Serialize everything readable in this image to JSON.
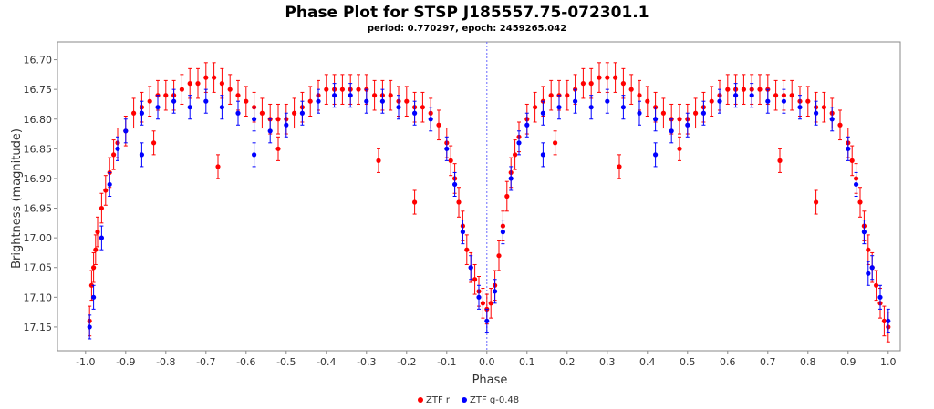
{
  "chart_data": {
    "type": "scatter",
    "title": "Phase Plot for STSP J185557.75-072301.1",
    "subtitle": "period: 0.770297, epoch: 2459265.042",
    "xlabel": "Phase",
    "ylabel": "Brightness (magnitude)",
    "xlim": [
      -1.07,
      1.03
    ],
    "ylim": [
      16.67,
      17.19
    ],
    "y_inverted": true,
    "xticks": [
      -1.0,
      -0.9,
      -0.8,
      -0.7,
      -0.6,
      -0.5,
      -0.4,
      -0.3,
      -0.2,
      -0.1,
      0.0,
      0.1,
      0.2,
      0.3,
      0.4,
      0.5,
      0.6,
      0.7,
      0.8,
      0.9,
      1.0
    ],
    "xtick_labels": [
      "-1.0",
      "-0.9",
      "-0.8",
      "-0.7",
      "-0.6",
      "-0.5",
      "-0.4",
      "-0.3",
      "-0.2",
      "-0.1",
      "0.0",
      "0.1",
      "0.2",
      "0.3",
      "0.4",
      "0.5",
      "0.6",
      "0.7",
      "0.8",
      "0.9",
      "1.0"
    ],
    "yticks": [
      16.7,
      16.75,
      16.8,
      16.85,
      16.9,
      16.95,
      17.0,
      17.05,
      17.1,
      17.15
    ],
    "ytick_labels": [
      "16.70",
      "16.75",
      "16.80",
      "16.85",
      "16.90",
      "16.95",
      "17.00",
      "17.05",
      "17.10",
      "17.15"
    ],
    "grid": false,
    "vline_x": 0.0,
    "legend_position": "bottom-center",
    "series": [
      {
        "name": "ZTF r",
        "color": "#ff0000",
        "points": [
          [
            -0.99,
            17.14,
            0.025
          ],
          [
            -0.985,
            17.08,
            0.025
          ],
          [
            -0.98,
            17.05,
            0.025
          ],
          [
            -0.975,
            17.02,
            0.025
          ],
          [
            -0.97,
            16.99,
            0.025
          ],
          [
            -0.96,
            16.95,
            0.025
          ],
          [
            -0.95,
            16.92,
            0.025
          ],
          [
            -0.94,
            16.89,
            0.025
          ],
          [
            -0.93,
            16.86,
            0.025
          ],
          [
            -0.92,
            16.84,
            0.025
          ],
          [
            -0.9,
            16.82,
            0.025
          ],
          [
            -0.88,
            16.79,
            0.025
          ],
          [
            -0.86,
            16.78,
            0.025
          ],
          [
            -0.84,
            16.77,
            0.025
          ],
          [
            -0.82,
            16.76,
            0.025
          ],
          [
            -0.8,
            16.76,
            0.025
          ],
          [
            -0.78,
            16.76,
            0.025
          ],
          [
            -0.76,
            16.75,
            0.025
          ],
          [
            -0.74,
            16.74,
            0.025
          ],
          [
            -0.72,
            16.74,
            0.025
          ],
          [
            -0.7,
            16.73,
            0.025
          ],
          [
            -0.68,
            16.73,
            0.025
          ],
          [
            -0.66,
            16.74,
            0.025
          ],
          [
            -0.64,
            16.75,
            0.025
          ],
          [
            -0.62,
            16.76,
            0.025
          ],
          [
            -0.6,
            16.77,
            0.025
          ],
          [
            -0.58,
            16.78,
            0.025
          ],
          [
            -0.56,
            16.79,
            0.025
          ],
          [
            -0.54,
            16.8,
            0.025
          ],
          [
            -0.52,
            16.8,
            0.025
          ],
          [
            -0.5,
            16.8,
            0.025
          ],
          [
            -0.48,
            16.79,
            0.025
          ],
          [
            -0.46,
            16.78,
            0.025
          ],
          [
            -0.44,
            16.77,
            0.025
          ],
          [
            -0.42,
            16.76,
            0.025
          ],
          [
            -0.4,
            16.75,
            0.025
          ],
          [
            -0.38,
            16.75,
            0.025
          ],
          [
            -0.36,
            16.75,
            0.025
          ],
          [
            -0.34,
            16.75,
            0.025
          ],
          [
            -0.32,
            16.75,
            0.025
          ],
          [
            -0.3,
            16.75,
            0.025
          ],
          [
            -0.28,
            16.76,
            0.025
          ],
          [
            -0.26,
            16.76,
            0.025
          ],
          [
            -0.24,
            16.76,
            0.025
          ],
          [
            -0.22,
            16.77,
            0.025
          ],
          [
            -0.2,
            16.77,
            0.025
          ],
          [
            -0.18,
            16.78,
            0.025
          ],
          [
            -0.16,
            16.78,
            0.025
          ],
          [
            -0.14,
            16.79,
            0.025
          ],
          [
            -0.12,
            16.81,
            0.025
          ],
          [
            -0.1,
            16.84,
            0.025
          ],
          [
            -0.09,
            16.87,
            0.025
          ],
          [
            -0.08,
            16.9,
            0.025
          ],
          [
            -0.07,
            16.94,
            0.025
          ],
          [
            -0.06,
            16.98,
            0.025
          ],
          [
            -0.05,
            17.02,
            0.025
          ],
          [
            -0.04,
            17.05,
            0.025
          ],
          [
            -0.03,
            17.07,
            0.025
          ],
          [
            -0.02,
            17.09,
            0.025
          ],
          [
            -0.01,
            17.11,
            0.025
          ],
          [
            0.0,
            17.12,
            0.025
          ],
          [
            0.01,
            17.11,
            0.025
          ],
          [
            0.02,
            17.08,
            0.025
          ],
          [
            0.03,
            17.03,
            0.025
          ],
          [
            0.04,
            16.98,
            0.025
          ],
          [
            0.05,
            16.93,
            0.025
          ],
          [
            0.06,
            16.89,
            0.025
          ],
          [
            0.07,
            16.86,
            0.025
          ],
          [
            0.08,
            16.83,
            0.025
          ],
          [
            0.1,
            16.8,
            0.025
          ],
          [
            0.12,
            16.78,
            0.025
          ],
          [
            0.14,
            16.77,
            0.025
          ],
          [
            0.16,
            16.76,
            0.025
          ],
          [
            0.18,
            16.76,
            0.025
          ],
          [
            0.2,
            16.76,
            0.025
          ],
          [
            0.22,
            16.75,
            0.025
          ],
          [
            0.24,
            16.74,
            0.025
          ],
          [
            0.26,
            16.74,
            0.025
          ],
          [
            0.28,
            16.73,
            0.025
          ],
          [
            0.3,
            16.73,
            0.025
          ],
          [
            0.32,
            16.73,
            0.025
          ],
          [
            0.34,
            16.74,
            0.025
          ],
          [
            0.36,
            16.75,
            0.025
          ],
          [
            0.38,
            16.76,
            0.025
          ],
          [
            0.4,
            16.77,
            0.025
          ],
          [
            0.42,
            16.78,
            0.025
          ],
          [
            0.44,
            16.79,
            0.025
          ],
          [
            0.46,
            16.8,
            0.025
          ],
          [
            0.48,
            16.8,
            0.025
          ],
          [
            0.5,
            16.8,
            0.025
          ],
          [
            0.52,
            16.79,
            0.025
          ],
          [
            0.54,
            16.78,
            0.025
          ],
          [
            0.56,
            16.77,
            0.025
          ],
          [
            0.58,
            16.76,
            0.025
          ],
          [
            0.6,
            16.75,
            0.025
          ],
          [
            0.62,
            16.75,
            0.025
          ],
          [
            0.64,
            16.75,
            0.025
          ],
          [
            0.66,
            16.75,
            0.025
          ],
          [
            0.68,
            16.75,
            0.025
          ],
          [
            0.7,
            16.75,
            0.025
          ],
          [
            0.72,
            16.76,
            0.025
          ],
          [
            0.74,
            16.76,
            0.025
          ],
          [
            0.76,
            16.76,
            0.025
          ],
          [
            0.78,
            16.77,
            0.025
          ],
          [
            0.8,
            16.77,
            0.025
          ],
          [
            0.82,
            16.78,
            0.025
          ],
          [
            0.84,
            16.78,
            0.025
          ],
          [
            0.86,
            16.79,
            0.025
          ],
          [
            0.88,
            16.81,
            0.025
          ],
          [
            0.9,
            16.84,
            0.025
          ],
          [
            0.91,
            16.87,
            0.025
          ],
          [
            0.92,
            16.9,
            0.025
          ],
          [
            0.93,
            16.94,
            0.025
          ],
          [
            0.94,
            16.98,
            0.025
          ],
          [
            0.95,
            17.02,
            0.025
          ],
          [
            0.96,
            17.05,
            0.025
          ],
          [
            0.97,
            17.08,
            0.025
          ],
          [
            0.98,
            17.11,
            0.025
          ],
          [
            0.99,
            17.14,
            0.025
          ],
          [
            1.0,
            17.15,
            0.025
          ],
          [
            -0.67,
            16.88,
            0.02
          ],
          [
            -0.27,
            16.87,
            0.02
          ],
          [
            -0.18,
            16.94,
            0.02
          ],
          [
            0.33,
            16.88,
            0.02
          ],
          [
            0.73,
            16.87,
            0.02
          ],
          [
            0.82,
            16.94,
            0.02
          ],
          [
            -0.83,
            16.84,
            0.02
          ],
          [
            -0.52,
            16.85,
            0.02
          ],
          [
            0.17,
            16.84,
            0.02
          ],
          [
            0.48,
            16.85,
            0.02
          ]
        ]
      },
      {
        "name": "ZTF g-0.48",
        "color": "#0000ff",
        "points": [
          [
            -0.99,
            17.15,
            0.02
          ],
          [
            -0.98,
            17.1,
            0.02
          ],
          [
            -0.96,
            17.0,
            0.02
          ],
          [
            -0.94,
            16.91,
            0.02
          ],
          [
            -0.92,
            16.85,
            0.02
          ],
          [
            -0.9,
            16.82,
            0.02
          ],
          [
            -0.86,
            16.79,
            0.02
          ],
          [
            -0.82,
            16.78,
            0.02
          ],
          [
            -0.78,
            16.77,
            0.02
          ],
          [
            -0.74,
            16.78,
            0.02
          ],
          [
            -0.7,
            16.77,
            0.02
          ],
          [
            -0.66,
            16.78,
            0.02
          ],
          [
            -0.62,
            16.79,
            0.02
          ],
          [
            -0.58,
            16.8,
            0.02
          ],
          [
            -0.54,
            16.82,
            0.02
          ],
          [
            -0.5,
            16.81,
            0.02
          ],
          [
            -0.46,
            16.79,
            0.02
          ],
          [
            -0.42,
            16.77,
            0.02
          ],
          [
            -0.38,
            16.76,
            0.02
          ],
          [
            -0.34,
            16.76,
            0.02
          ],
          [
            -0.3,
            16.77,
            0.02
          ],
          [
            -0.26,
            16.77,
            0.02
          ],
          [
            -0.22,
            16.78,
            0.02
          ],
          [
            -0.18,
            16.79,
            0.02
          ],
          [
            -0.14,
            16.8,
            0.02
          ],
          [
            -0.1,
            16.85,
            0.02
          ],
          [
            -0.08,
            16.91,
            0.02
          ],
          [
            -0.06,
            16.99,
            0.02
          ],
          [
            -0.04,
            17.05,
            0.02
          ],
          [
            -0.02,
            17.1,
            0.02
          ],
          [
            0.0,
            17.14,
            0.02
          ],
          [
            0.02,
            17.09,
            0.02
          ],
          [
            0.04,
            16.99,
            0.02
          ],
          [
            0.06,
            16.9,
            0.02
          ],
          [
            0.08,
            16.84,
            0.02
          ],
          [
            0.1,
            16.81,
            0.02
          ],
          [
            0.14,
            16.79,
            0.02
          ],
          [
            0.18,
            16.78,
            0.02
          ],
          [
            0.22,
            16.77,
            0.02
          ],
          [
            0.26,
            16.78,
            0.02
          ],
          [
            0.3,
            16.77,
            0.02
          ],
          [
            0.34,
            16.78,
            0.02
          ],
          [
            0.38,
            16.79,
            0.02
          ],
          [
            0.42,
            16.8,
            0.02
          ],
          [
            0.46,
            16.82,
            0.02
          ],
          [
            0.5,
            16.81,
            0.02
          ],
          [
            0.54,
            16.79,
            0.02
          ],
          [
            0.58,
            16.77,
            0.02
          ],
          [
            0.62,
            16.76,
            0.02
          ],
          [
            0.66,
            16.76,
            0.02
          ],
          [
            0.7,
            16.77,
            0.02
          ],
          [
            0.74,
            16.77,
            0.02
          ],
          [
            0.78,
            16.78,
            0.02
          ],
          [
            0.82,
            16.79,
            0.02
          ],
          [
            0.86,
            16.8,
            0.02
          ],
          [
            0.9,
            16.85,
            0.02
          ],
          [
            0.92,
            16.91,
            0.02
          ],
          [
            0.94,
            16.99,
            0.02
          ],
          [
            0.96,
            17.05,
            0.02
          ],
          [
            0.98,
            17.1,
            0.02
          ],
          [
            1.0,
            17.14,
            0.02
          ],
          [
            -0.86,
            16.86,
            0.02
          ],
          [
            -0.58,
            16.86,
            0.02
          ],
          [
            0.14,
            16.86,
            0.02
          ],
          [
            0.42,
            16.86,
            0.02
          ],
          [
            0.95,
            17.06,
            0.02
          ]
        ]
      }
    ]
  }
}
